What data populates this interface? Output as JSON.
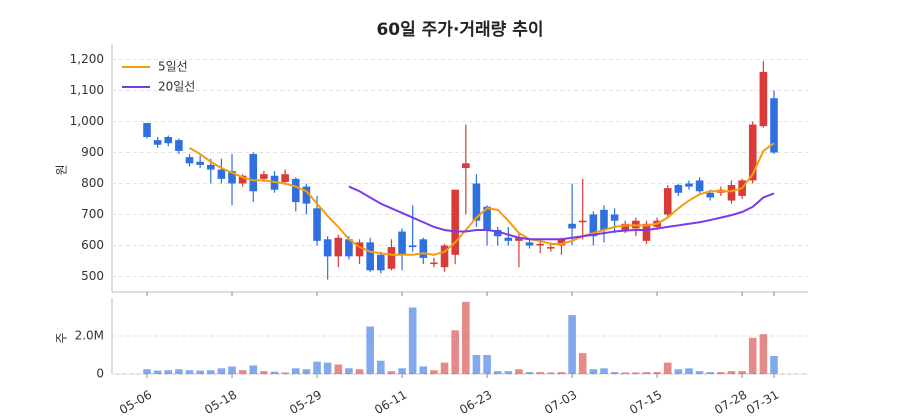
{
  "chart_data": {
    "type": "candlestick",
    "title": "60일 주가·거래량 추이",
    "y_label": "원",
    "categories": [
      "05-06",
      null,
      null,
      null,
      null,
      null,
      null,
      null,
      "05-18",
      null,
      null,
      null,
      null,
      null,
      null,
      null,
      "05-29",
      null,
      null,
      null,
      null,
      null,
      null,
      null,
      "06-11",
      null,
      null,
      null,
      null,
      null,
      null,
      null,
      "06-23",
      null,
      null,
      null,
      null,
      null,
      null,
      null,
      "07-03",
      null,
      null,
      null,
      null,
      null,
      null,
      null,
      "07-15",
      null,
      null,
      null,
      null,
      null,
      null,
      null,
      "07-28",
      null,
      null,
      "07-31"
    ],
    "open": [
      995,
      940,
      950,
      940,
      885,
      870,
      860,
      845,
      840,
      800,
      895,
      815,
      825,
      805,
      815,
      790,
      720,
      620,
      565,
      620,
      565,
      610,
      570,
      525,
      645,
      600,
      620,
      540,
      530,
      570,
      850,
      800,
      725,
      650,
      625,
      615,
      610,
      600,
      590,
      600,
      670,
      675,
      700,
      715,
      700,
      650,
      655,
      615,
      660,
      700,
      795,
      800,
      810,
      770,
      770,
      745,
      760,
      810,
      985,
      1075
    ],
    "high": [
      995,
      950,
      955,
      945,
      895,
      890,
      880,
      880,
      895,
      830,
      900,
      840,
      840,
      845,
      820,
      800,
      760,
      630,
      635,
      630,
      620,
      625,
      580,
      620,
      655,
      730,
      625,
      560,
      605,
      780,
      990,
      830,
      730,
      660,
      660,
      640,
      620,
      620,
      610,
      625,
      800,
      815,
      710,
      730,
      720,
      680,
      690,
      680,
      690,
      795,
      800,
      810,
      820,
      780,
      790,
      810,
      815,
      1000,
      1195,
      1100
    ],
    "low": [
      945,
      915,
      920,
      895,
      855,
      850,
      800,
      800,
      730,
      790,
      740,
      805,
      770,
      795,
      710,
      700,
      600,
      490,
      530,
      555,
      540,
      515,
      510,
      520,
      520,
      580,
      540,
      530,
      515,
      540,
      700,
      660,
      600,
      600,
      600,
      530,
      590,
      575,
      580,
      570,
      600,
      620,
      600,
      610,
      640,
      640,
      630,
      605,
      650,
      690,
      760,
      780,
      770,
      745,
      760,
      735,
      750,
      800,
      980,
      895
    ],
    "close": [
      950,
      925,
      930,
      905,
      865,
      860,
      845,
      815,
      800,
      825,
      775,
      830,
      780,
      830,
      740,
      735,
      615,
      565,
      625,
      565,
      610,
      520,
      520,
      595,
      570,
      595,
      560,
      545,
      600,
      780,
      865,
      680,
      650,
      630,
      615,
      625,
      600,
      605,
      595,
      620,
      655,
      680,
      630,
      650,
      680,
      670,
      680,
      670,
      680,
      785,
      770,
      790,
      775,
      755,
      780,
      795,
      810,
      990,
      1160,
      900
    ],
    "up_color": "#d93a3a",
    "down_color": "#2f6fe0",
    "ylim": [
      450,
      1250
    ],
    "yticks": [
      500,
      600,
      700,
      800,
      900,
      {
        "value": 1000,
        "label": "1,000"
      },
      {
        "value": 1100,
        "label": "1,100"
      },
      {
        "value": 1200,
        "label": "1,200"
      }
    ],
    "grid": true,
    "legend": "upper left",
    "lines": [
      {
        "name": "5일선",
        "color": "#f59e0b",
        "values": [
          null,
          null,
          null,
          null,
          915,
          895,
          870,
          850,
          835,
          820,
          810,
          810,
          805,
          800,
          790,
          775,
          735,
          695,
          660,
          620,
          595,
          580,
          575,
          570,
          570,
          570,
          575,
          570,
          580,
          610,
          650,
          690,
          720,
          715,
          680,
          640,
          620,
          615,
          605,
          605,
          615,
          630,
          640,
          650,
          660,
          665,
          665,
          665,
          670,
          690,
          720,
          745,
          765,
          775,
          775,
          775,
          785,
          830,
          905,
          930
        ]
      },
      {
        "name": "20일선",
        "color": "#7c3aed",
        "values": [
          null,
          null,
          null,
          null,
          null,
          null,
          null,
          null,
          null,
          null,
          null,
          null,
          null,
          null,
          null,
          null,
          null,
          null,
          null,
          790,
          775,
          755,
          735,
          720,
          705,
          690,
          675,
          660,
          650,
          645,
          645,
          650,
          650,
          645,
          635,
          625,
          620,
          620,
          620,
          620,
          625,
          630,
          635,
          640,
          645,
          648,
          650,
          650,
          655,
          660,
          665,
          670,
          675,
          682,
          690,
          698,
          708,
          725,
          755,
          768
        ]
      }
    ],
    "volume": {
      "y_label": "주",
      "ylim": [
        0,
        4000000
      ],
      "yticks": [
        0,
        {
          "value": 2000000,
          "label": "2.0M"
        }
      ],
      "values": [
        250000,
        180000,
        200000,
        250000,
        200000,
        180000,
        200000,
        300000,
        400000,
        200000,
        450000,
        150000,
        120000,
        80000,
        300000,
        250000,
        650000,
        600000,
        500000,
        300000,
        250000,
        2500000,
        700000,
        150000,
        300000,
        3500000,
        400000,
        200000,
        600000,
        2300000,
        3800000,
        1000000,
        1000000,
        150000,
        150000,
        250000,
        100000,
        100000,
        80000,
        100000,
        3100000,
        1100000,
        250000,
        300000,
        100000,
        80000,
        80000,
        100000,
        100000,
        600000,
        250000,
        300000,
        150000,
        100000,
        100000,
        150000,
        150000,
        1900000,
        2100000,
        950000
      ]
    }
  }
}
